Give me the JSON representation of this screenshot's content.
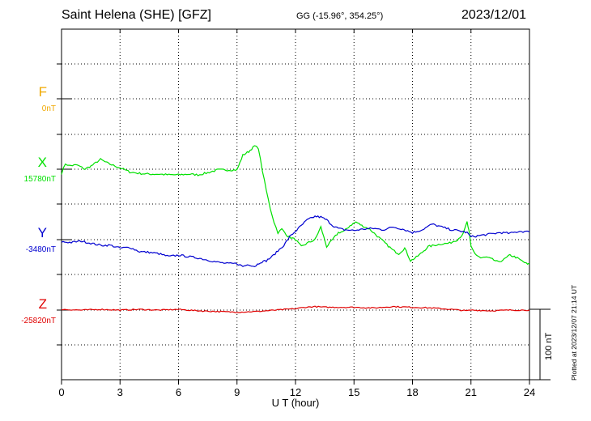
{
  "header": {
    "title": "Saint Helena (SHE)  [GFZ]",
    "coords": "GG (-15.96°, 354.25°)",
    "date": "2023/12/01"
  },
  "footer": {
    "plotted": "Plotted at 2023/12/07 21:14 UT",
    "scale_label": "100 nT"
  },
  "colors": {
    "F": "#f0a800",
    "X": "#00e000",
    "Y": "#0000d0",
    "Z": "#e00000"
  },
  "chart_data": {
    "type": "line",
    "xlabel": "U T (hour)",
    "xlim": [
      0,
      24
    ],
    "x_ticks": [
      "0",
      "3",
      "6",
      "9",
      "12",
      "15",
      "18",
      "21",
      "24"
    ],
    "channels": [
      {
        "name": "F",
        "baseline_label": "0nT"
      },
      {
        "name": "X",
        "baseline_label": "15780nT"
      },
      {
        "name": "Y",
        "baseline_label": "-3480nT"
      },
      {
        "name": "Z",
        "baseline_label": "-25820nT"
      }
    ],
    "grid": true,
    "series": [
      {
        "name": "X",
        "x": [
          0,
          0.2,
          0.4,
          0.8,
          1.2,
          1.6,
          2.0,
          2.4,
          3.0,
          3.5,
          4.0,
          4.5,
          5.0,
          5.5,
          6.0,
          6.5,
          7.0,
          7.5,
          8.0,
          8.5,
          9.0,
          9.3,
          9.6,
          9.9,
          10.1,
          10.3,
          10.5,
          10.7,
          10.9,
          11.1,
          11.3,
          11.6,
          12.0,
          12.3,
          12.6,
          13.0,
          13.3,
          13.6,
          13.9,
          14.2,
          14.5,
          14.8,
          15.1,
          15.4,
          15.8,
          16.2,
          16.6,
          17.0,
          17.3,
          17.6,
          17.9,
          18.2,
          18.5,
          18.8,
          19.1,
          19.5,
          19.9,
          20.3,
          20.6,
          20.8,
          20.9,
          21.0,
          21.2,
          21.5,
          21.8,
          22.1,
          22.4,
          22.7,
          23.0,
          23.3,
          23.6,
          23.9,
          24.0
        ],
        "y": [
          -6,
          8,
          5,
          6,
          0,
          6,
          14,
          8,
          2,
          -4,
          -6,
          -7,
          -7,
          -8,
          -8,
          -7,
          -8,
          -5,
          -1,
          -1,
          -1,
          20,
          25,
          33,
          30,
          -2,
          -30,
          -55,
          -75,
          -90,
          -85,
          -95,
          -100,
          -110,
          -105,
          -100,
          -82,
          -110,
          -100,
          -90,
          -88,
          -80,
          -75,
          -80,
          -85,
          -95,
          -105,
          -115,
          -120,
          -112,
          -130,
          -125,
          -118,
          -110,
          -108,
          -106,
          -105,
          -100,
          -92,
          -75,
          -88,
          -110,
          -120,
          -126,
          -125,
          -128,
          -132,
          -128,
          -122,
          -125,
          -130,
          -135,
          -135
        ]
      },
      {
        "name": "Y",
        "x": [
          0,
          0.5,
          1.0,
          1.5,
          2.0,
          2.5,
          3.0,
          3.5,
          4.0,
          4.5,
          5.0,
          5.5,
          6.0,
          6.5,
          7.0,
          7.5,
          8.0,
          8.5,
          9.0,
          9.3,
          9.6,
          9.9,
          10.2,
          10.5,
          10.8,
          11.1,
          11.4,
          11.7,
          12.0,
          12.3,
          12.6,
          13.0,
          13.3,
          13.6,
          13.9,
          14.2,
          14.5,
          15.0,
          15.5,
          16.0,
          16.5,
          17.0,
          17.5,
          18.0,
          18.5,
          19.0,
          19.5,
          20.0,
          20.5,
          20.8,
          21.0,
          21.5,
          22.0,
          22.5,
          23.0,
          23.5,
          24.0
        ],
        "y": [
          -3,
          -4,
          -2,
          -5,
          -8,
          -8,
          -12,
          -11,
          -17,
          -18,
          -20,
          -24,
          -22,
          -24,
          -26,
          -29,
          -32,
          -34,
          -34,
          -38,
          -35,
          -38,
          -32,
          -30,
          -24,
          -16,
          -8,
          4,
          12,
          20,
          28,
          33,
          32,
          28,
          20,
          16,
          14,
          13,
          15,
          16,
          14,
          18,
          15,
          10,
          14,
          22,
          18,
          14,
          12,
          10,
          4,
          6,
          8,
          10,
          9,
          12,
          11
        ]
      },
      {
        "name": "Z",
        "x": [
          0,
          1,
          2,
          3,
          4,
          5,
          6,
          7,
          8,
          9,
          10,
          10.5,
          11,
          11.5,
          12,
          12.5,
          13,
          13.5,
          14,
          15,
          16,
          17,
          18,
          19,
          20,
          20.8,
          21,
          22,
          23,
          24
        ],
        "y": [
          1,
          0,
          1,
          0,
          1,
          0,
          1,
          -1,
          -2,
          -3,
          -2,
          -1,
          0,
          1,
          2,
          4,
          5,
          4,
          4,
          4,
          3,
          5,
          4,
          3,
          1,
          -1,
          0,
          -1,
          0,
          0
        ]
      }
    ]
  }
}
